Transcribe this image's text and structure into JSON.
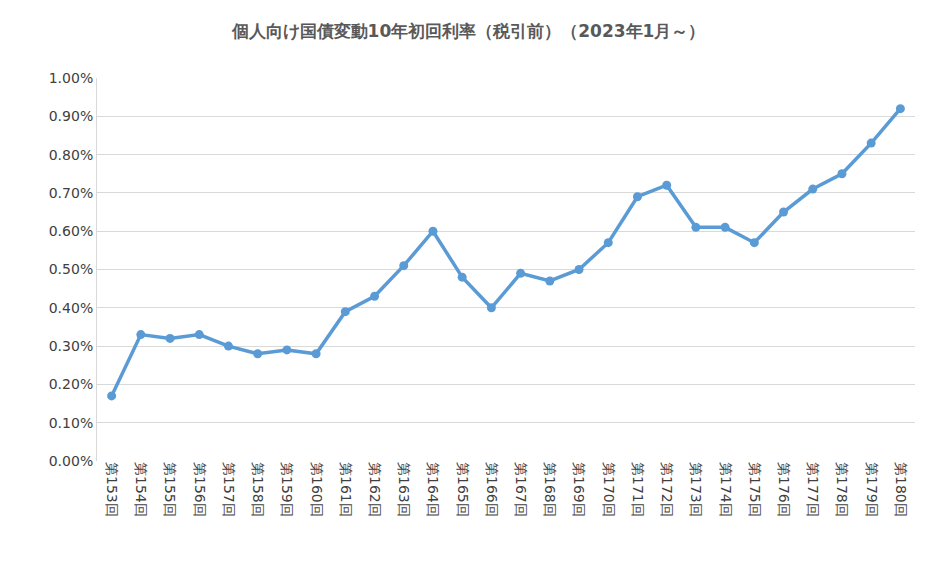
{
  "chart_data": {
    "type": "line",
    "title": "個人向け国債変動10年初回利率（税引前）（2023年1月～）",
    "categories": [
      "第153回",
      "第154回",
      "第155回",
      "第156回",
      "第157回",
      "第158回",
      "第159回",
      "第160回",
      "第161回",
      "第162回",
      "第163回",
      "第164回",
      "第165回",
      "第166回",
      "第167回",
      "第168回",
      "第169回",
      "第170回",
      "第171回",
      "第172回",
      "第173回",
      "第174回",
      "第175回",
      "第176回",
      "第177回",
      "第178回",
      "第179回",
      "第180回"
    ],
    "values": [
      0.17,
      0.33,
      0.32,
      0.33,
      0.3,
      0.28,
      0.29,
      0.28,
      0.39,
      0.43,
      0.51,
      0.6,
      0.48,
      0.4,
      0.49,
      0.47,
      0.5,
      0.57,
      0.69,
      0.72,
      0.61,
      0.61,
      0.57,
      0.65,
      0.71,
      0.75,
      0.83,
      0.92
    ],
    "color": "#5b9bd5",
    "marker": "circle",
    "ylim": [
      0,
      1
    ],
    "yticks": [
      {
        "value": 0,
        "label": "0.00%"
      },
      {
        "value": 0.1,
        "label": "0.10%"
      },
      {
        "value": 0.2,
        "label": "0.20%"
      },
      {
        "value": 0.3,
        "label": "0.30%"
      },
      {
        "value": 0.4,
        "label": "0.40%"
      },
      {
        "value": 0.5,
        "label": "0.50%"
      },
      {
        "value": 0.6,
        "label": "0.60%"
      },
      {
        "value": 0.7,
        "label": "0.70%"
      },
      {
        "value": 0.8,
        "label": "0.80%"
      },
      {
        "value": 0.9,
        "label": "0.90%"
      },
      {
        "value": 1,
        "label": "1.00%"
      }
    ],
    "grid": true
  }
}
